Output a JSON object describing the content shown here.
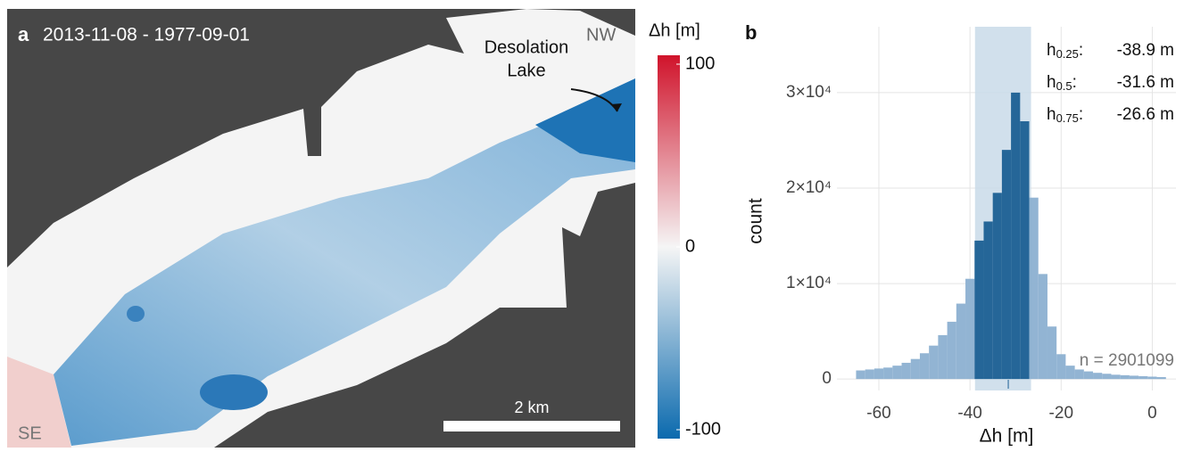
{
  "map": {
    "panel_label": "a",
    "title": "2013-11-08 - 1977-09-01",
    "corner_labels": [
      "NW",
      "SE"
    ],
    "lake_label": [
      "Desolation",
      "Lake"
    ],
    "scale_bar": "2 km",
    "colorbar": {
      "title": "Δh [m]",
      "lim": [
        -100,
        100
      ],
      "ticks": [
        100,
        0,
        -100
      ],
      "colors": [
        "#0b6aae",
        "#f5f5f5",
        "#d0132b"
      ]
    }
  },
  "chart_data": {
    "type": "histogram",
    "panel_label": "b",
    "xlabel": "Δh [m]",
    "ylabel": "count",
    "bins": [
      -65,
      -63,
      -61,
      -59,
      -57,
      -55,
      -53,
      -51,
      -49,
      -47,
      -45,
      -43,
      -41,
      -39,
      -37,
      -35,
      -33,
      -31,
      -29,
      -27,
      -25,
      -23,
      -21,
      -19,
      -17,
      -15,
      -13,
      -11,
      -9,
      -7,
      -5,
      -3,
      -1,
      1,
      3
    ],
    "values": [
      900,
      1000,
      1100,
      1200,
      1400,
      1700,
      2100,
      2700,
      3500,
      4600,
      6000,
      7900,
      10500,
      14500,
      16500,
      19500,
      24000,
      30000,
      27000,
      19000,
      11000,
      5500,
      2600,
      1400,
      1000,
      800,
      650,
      550,
      450,
      400,
      350,
      300,
      250,
      200
    ],
    "color": "#8cb0d1",
    "highlight_color": "#1b5f93",
    "band_color": "#c9dbe9",
    "xlim": [
      -69.2,
      5.2
    ],
    "ylim": [
      -1200,
      36900
    ],
    "xticks": [
      -60,
      -40,
      -20,
      0
    ],
    "yticks": [
      0,
      {
        "value": 10000,
        "label": "1×10⁴"
      },
      {
        "value": 20000,
        "label": "2×10⁴"
      },
      {
        "value": 30000,
        "label": "3×10⁴"
      }
    ],
    "grid": true,
    "quantiles": [
      {
        "name": "h",
        "sub": "0.25",
        "suffix": ":",
        "value": -38.9,
        "value_label": "-38.9 m"
      },
      {
        "name": "h",
        "sub": "0.5",
        "suffix": ":",
        "value": -31.6,
        "value_label": "-31.6 m"
      },
      {
        "name": "h",
        "sub": "0.75",
        "suffix": ":",
        "value": -26.6,
        "value_label": "-26.6 m"
      }
    ],
    "annotation": "n = 2901099"
  }
}
